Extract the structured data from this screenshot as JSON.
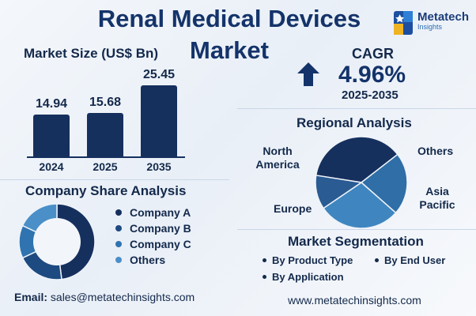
{
  "title": "Renal Medical Devices Market",
  "logo": {
    "name": "Metatech",
    "sub": "Insights"
  },
  "market_size": {
    "heading": "Market Size (US$ Bn)"
  },
  "cagr": {
    "label": "CAGR",
    "value": "4.96%",
    "range": "2025-2035"
  },
  "company_share": {
    "heading": "Company Share Analysis",
    "legend": [
      "Company A",
      "Company B",
      "Company C",
      "Others"
    ],
    "colors": [
      "#16305e",
      "#1d4a80",
      "#2f73b0",
      "#4a8fc8"
    ]
  },
  "regional": {
    "heading": "Regional Analysis",
    "labels": {
      "north_america": "North America",
      "others": "Others",
      "asia_pacific": "Asia Pacific",
      "europe": "Europe"
    }
  },
  "segmentation": {
    "heading": "Market Segmentation",
    "items": [
      "By Product Type",
      "By End User",
      "By Application"
    ]
  },
  "footer": {
    "email_label": "Email:",
    "email": "sales@metatechinsights.com",
    "website": "www.metatechinsights.com"
  },
  "chart_data": [
    {
      "type": "bar",
      "title": "Market Size (US$ Bn)",
      "categories": [
        "2024",
        "2025",
        "2035"
      ],
      "values": [
        14.94,
        15.68,
        25.45
      ],
      "value_labels": [
        "14.94",
        "15.68",
        "25.45"
      ],
      "ylim": [
        0,
        25.45
      ],
      "color": "#16305e",
      "grid": false
    },
    {
      "type": "pie",
      "variant": "donut",
      "title": "Company Share Analysis",
      "labels": [
        "Company A",
        "Company B",
        "Company C",
        "Others"
      ],
      "values": [
        48,
        20,
        14,
        18
      ],
      "colors": [
        "#16305e",
        "#1d4a80",
        "#2f73b0",
        "#4a8fc8"
      ],
      "legend": "right"
    },
    {
      "type": "pie",
      "title": "Regional Analysis",
      "labels": [
        "North America",
        "Others",
        "Asia Pacific",
        "Europe"
      ],
      "values": [
        37,
        22,
        29,
        12
      ],
      "colors": [
        "#16305e",
        "#2f6ea6",
        "#3f86c0",
        "#2a5b92"
      ],
      "legend": "none"
    }
  ]
}
